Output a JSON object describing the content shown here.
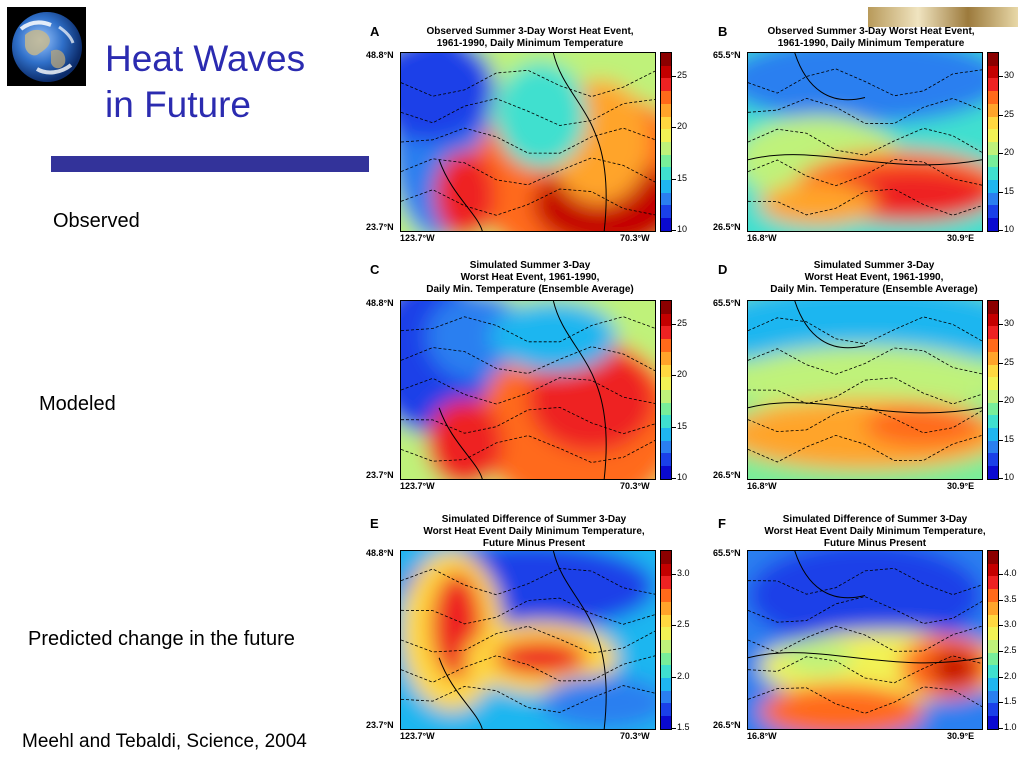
{
  "slide": {
    "title": "Heat Waves\nin Future",
    "labels": {
      "observed": "Observed",
      "modeled": "Modeled",
      "predicted": "Predicted change in the future"
    },
    "citation": "Meehl and Tebaldi, Science, 2004",
    "title_color": "#2b2bb0",
    "bar_color": "#33339a"
  },
  "panels": [
    {
      "letter": "A",
      "title": "Observed Summer 3-Day Worst Heat Event,\n1961-1990, Daily Minimum Temperature",
      "lat_top": "48.8°N",
      "lat_bottom": "23.7°N",
      "lon_left": "123.7°W",
      "lon_right": "70.3°W",
      "colorbar": [
        "25",
        "20",
        "15",
        "10"
      ]
    },
    {
      "letter": "B",
      "title": "Observed Summer 3-Day Worst Heat Event,\n1961-1990, Daily Minimum Temperature",
      "lat_top": "65.5°N",
      "lat_bottom": "26.5°N",
      "lon_left": "16.8°W",
      "lon_right": "30.9°E",
      "colorbar": [
        "30",
        "25",
        "20",
        "15",
        "10"
      ]
    },
    {
      "letter": "C",
      "title": "Simulated Summer 3-Day\nWorst Heat Event, 1961-1990,\nDaily Min. Temperature (Ensemble Average)",
      "lat_top": "48.8°N",
      "lat_bottom": "23.7°N",
      "lon_left": "123.7°W",
      "lon_right": "70.3°W",
      "colorbar": [
        "25",
        "20",
        "15",
        "10"
      ]
    },
    {
      "letter": "D",
      "title": "Simulated Summer 3-Day\nWorst Heat Event, 1961-1990,\nDaily Min. Temperature (Ensemble Average)",
      "lat_top": "65.5°N",
      "lat_bottom": "26.5°N",
      "lon_left": "16.8°W",
      "lon_right": "30.9°E",
      "colorbar": [
        "30",
        "25",
        "20",
        "15",
        "10"
      ]
    },
    {
      "letter": "E",
      "title": "Simulated Difference of Summer 3-Day\nWorst Heat Event Daily Minimum Temperature,\nFuture Minus Present",
      "lat_top": "48.8°N",
      "lat_bottom": "23.7°N",
      "lon_left": "123.7°W",
      "lon_right": "70.3°W",
      "colorbar": [
        "3.0",
        "2.5",
        "2.0",
        "1.5"
      ]
    },
    {
      "letter": "F",
      "title": "Simulated Difference of Summer 3-Day\nWorst Heat Event Daily Minimum Temperature,\nFuture Minus Present",
      "lat_top": "65.5°N",
      "lat_bottom": "26.5°N",
      "lon_left": "16.8°W",
      "lon_right": "30.9°E",
      "colorbar": [
        "4.0",
        "3.5",
        "3.0",
        "2.5",
        "2.0",
        "1.5",
        "1.0"
      ]
    }
  ],
  "colorscale": [
    "#8b0000",
    "#c40000",
    "#ee2222",
    "#ff6a1a",
    "#ffa42a",
    "#ffd840",
    "#f2f255",
    "#bff27a",
    "#78ee9a",
    "#3fe0cf",
    "#1fb6f0",
    "#2a7ff0",
    "#1a40e8",
    "#0a0ad0"
  ]
}
